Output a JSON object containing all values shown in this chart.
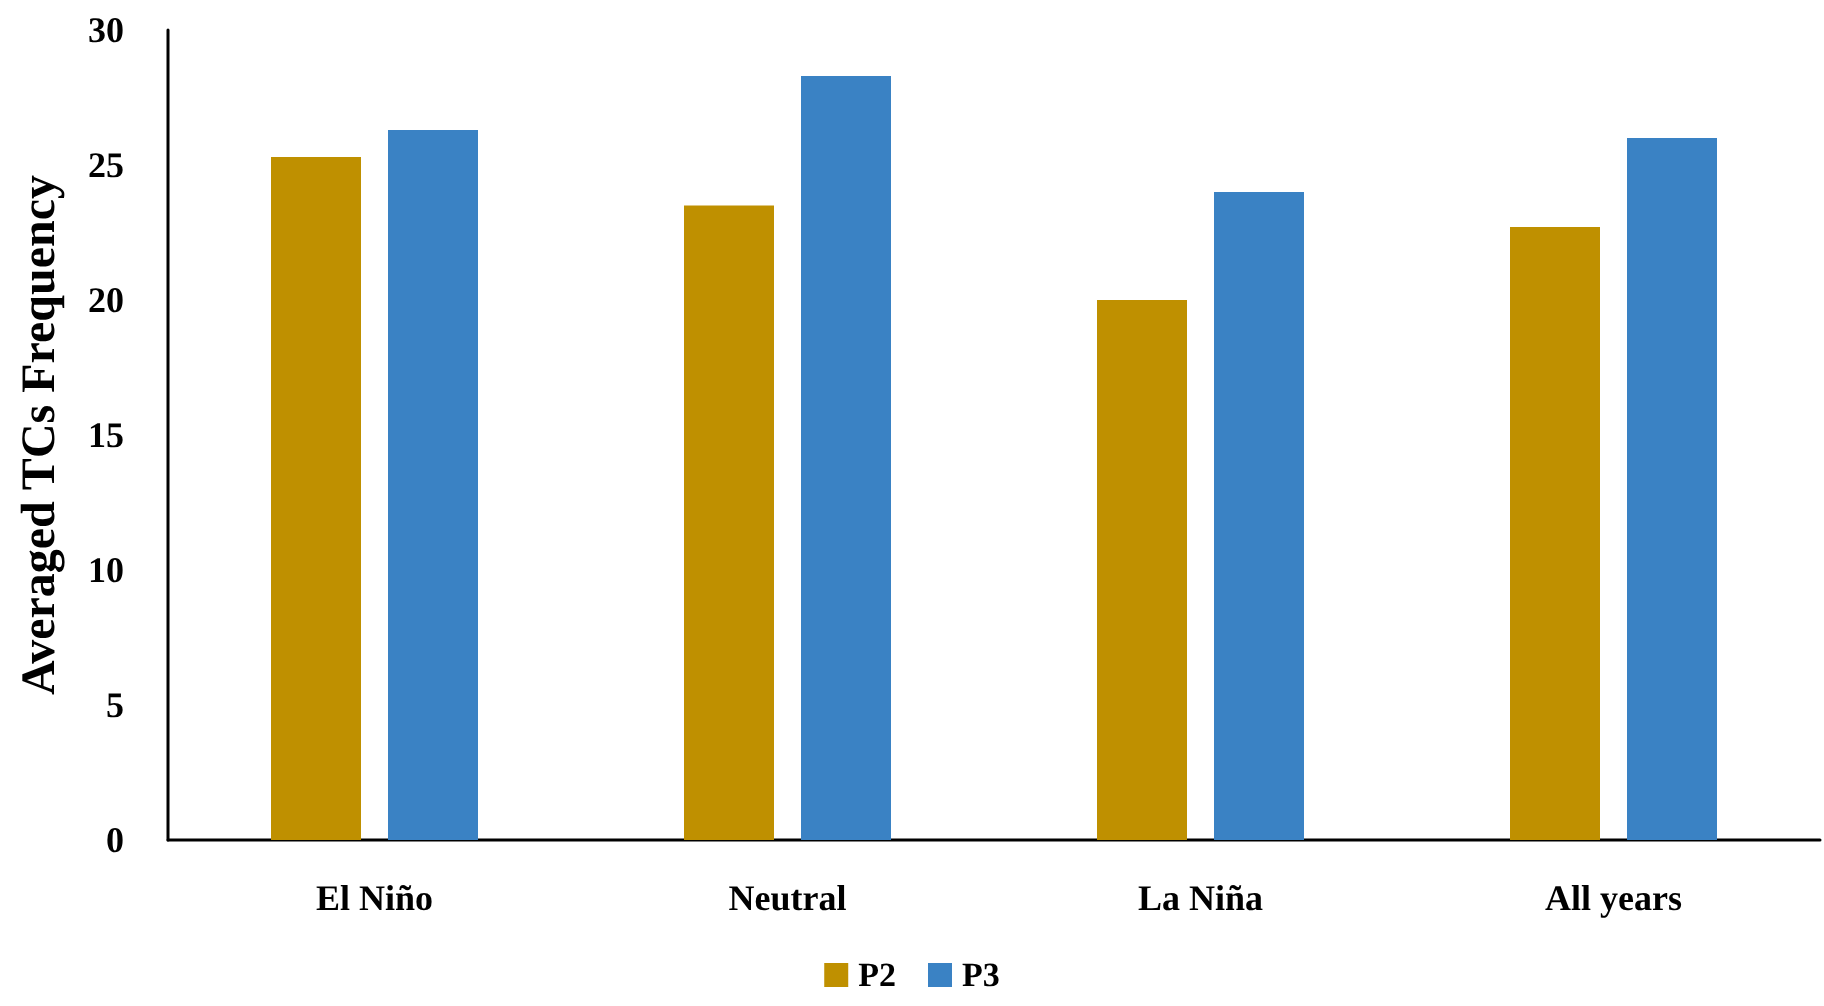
{
  "chart_data": {
    "type": "bar",
    "ylabel": "Averaged TCs Frequency",
    "categories": [
      "El Niño",
      "Neutral",
      "La Niña",
      "All years"
    ],
    "series": [
      {
        "name": "P2",
        "color": "#bf9000",
        "values": [
          25.3,
          23.5,
          20.0,
          22.7
        ]
      },
      {
        "name": "P3",
        "color": "#3a82c4",
        "values": [
          26.3,
          28.3,
          24.0,
          26.0
        ]
      }
    ],
    "ylim": [
      0,
      30
    ],
    "yticks": [
      0,
      5,
      10,
      15,
      20,
      25,
      30
    ],
    "grid": false,
    "legend": "bottom"
  }
}
